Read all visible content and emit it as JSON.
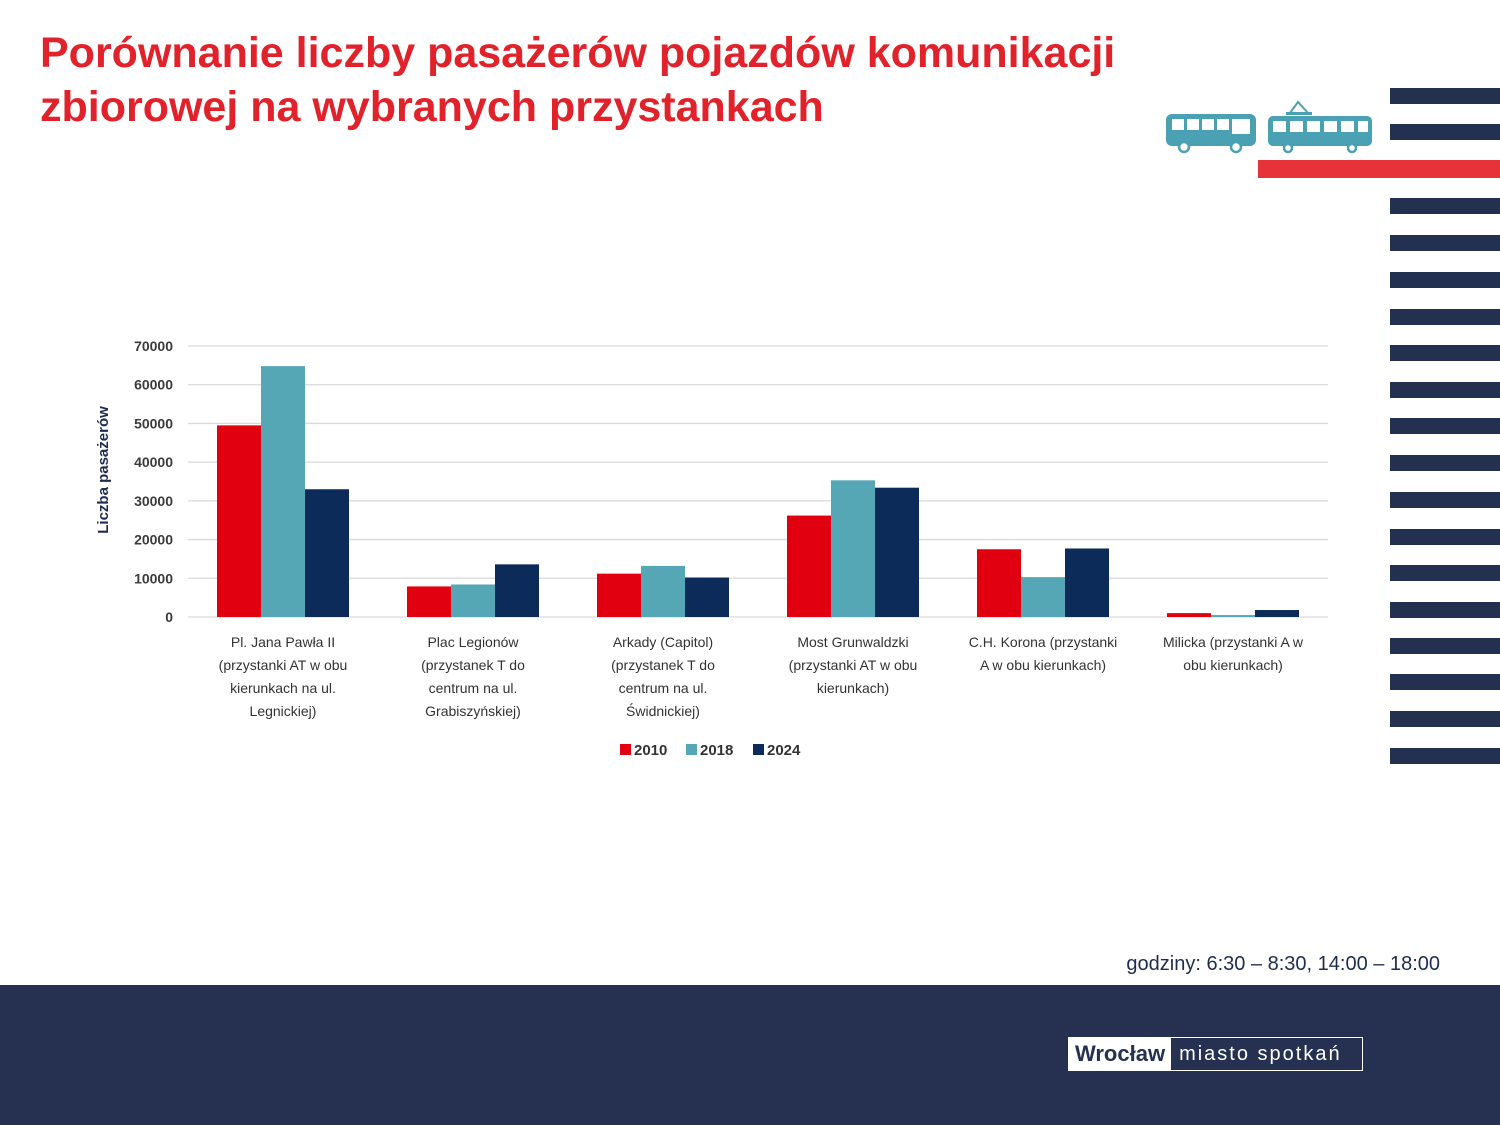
{
  "slide": {
    "title": "Porównanie liczby pasażerów pojazdów komunikacji zbiorowej na wybranych przystankach",
    "hours_note": "godziny: 6:30 – 8:30, 14:00 – 18:00",
    "logo": {
      "city": "Wrocław",
      "slogan": "miasto spotkań"
    },
    "colors": {
      "title": "#e2222a",
      "navy": "#263152",
      "accent_red": "#e8323a",
      "vehicle_icons": "#4aa1b3"
    },
    "icons": [
      "bus-icon",
      "tram-icon"
    ]
  },
  "chart_data": {
    "type": "bar",
    "title": "",
    "xlabel": "",
    "ylabel": "Liczba pasażerów",
    "ylim": [
      0,
      70000
    ],
    "yticks": [
      0,
      10000,
      20000,
      30000,
      40000,
      50000,
      60000,
      70000
    ],
    "grid": true,
    "legend_position": "bottom",
    "categories": [
      "Pl. Jana Pawła II (przystanki AT w obu kierunkach na ul. Legnickiej)",
      "Plac Legionów (przystanek T do centrum na ul. Grabiszyńskiej)",
      "Arkady (Capitol) (przystanek T do centrum na ul. Świdnickiej)",
      "Most Grunwaldzki (przystanki AT w obu kierunkach)",
      "C.H. Korona (przystanki A w obu kierunkach)",
      "Milicka (przystanki A w obu kierunkach)"
    ],
    "category_lines": [
      [
        "Pl. Jana Pawła II",
        "(przystanki AT w obu",
        "kierunkach na ul.",
        "Legnickiej)"
      ],
      [
        "Plac Legionów",
        "(przystanek T do",
        "centrum na ul.",
        "Grabiszyńskiej)"
      ],
      [
        "Arkady (Capitol)",
        "(przystanek T do",
        "centrum na ul.",
        "Świdnickiej)"
      ],
      [
        "Most Grunwaldzki",
        "(przystanki AT w obu",
        "kierunkach)"
      ],
      [
        "C.H. Korona (przystanki",
        "A w obu kierunkach)"
      ],
      [
        "Milicka (przystanki A w",
        "obu kierunkach)"
      ]
    ],
    "series": [
      {
        "name": "2010",
        "color": "#e0000f",
        "values": [
          49500,
          7900,
          11200,
          26200,
          17500,
          1000
        ]
      },
      {
        "name": "2018",
        "color": "#55a7b5",
        "values": [
          64800,
          8400,
          13200,
          35300,
          10300,
          500
        ]
      },
      {
        "name": "2024",
        "color": "#0d2b58",
        "values": [
          33000,
          13600,
          10200,
          33400,
          17700,
          1800
        ]
      }
    ]
  }
}
